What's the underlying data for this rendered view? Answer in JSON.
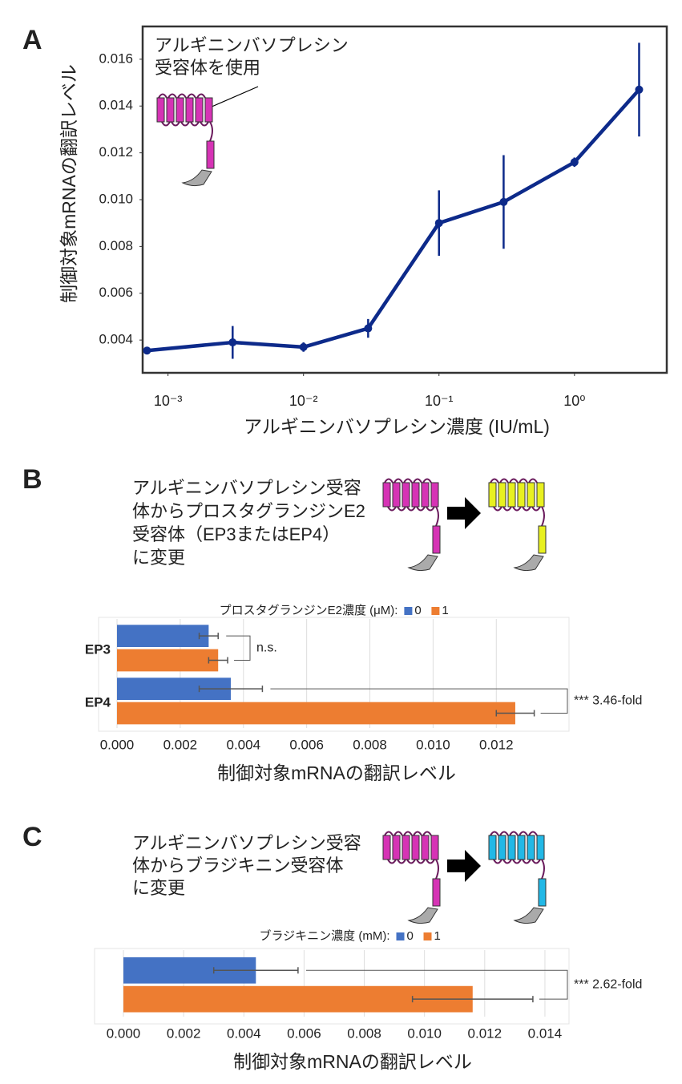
{
  "chart_data": [
    {
      "type": "line",
      "panel": "A",
      "annotation": [
        "アルギニンバソプレシン",
        "受容体を使用"
      ],
      "xlabel": "アルギニンバソプレシン濃度 (IU/mL)",
      "ylabel": "制御対象mRNAの翻訳レベル",
      "xscale": "log",
      "x": [
        0.0007,
        0.003,
        0.01,
        0.03,
        0.1,
        0.3,
        1,
        3
      ],
      "xlim": [
        0.00065,
        4.8
      ],
      "xticks": [
        {
          "value": 0.001,
          "label": "10⁻³"
        },
        {
          "value": 0.01,
          "label": "10⁻²"
        },
        {
          "value": 0.1,
          "label": "10⁻¹"
        },
        {
          "value": 1,
          "label": "10⁰"
        }
      ],
      "ylim": [
        0.0026,
        0.0174
      ],
      "yticks": [
        0.004,
        0.006,
        0.008,
        {
          "value": 0.01,
          "label": "0.010"
        },
        0.012,
        0.014,
        0.016
      ],
      "series": [
        {
          "color": "#0d2a8a",
          "values": [
            0.00355,
            0.0039,
            0.0037,
            0.0045,
            0.009,
            0.0099,
            0.0116,
            0.0147
          ],
          "errors": [
            0.0001,
            0.0007,
            0.0002,
            0.0004,
            0.0014,
            0.002,
            0.0002,
            0.002
          ]
        }
      ]
    },
    {
      "type": "barh",
      "panel": "B",
      "description": [
        "アルギニンバソプレシン受容",
        "体からプロスタグランジンE2",
        "受容体（EP3またはEP4）",
        "に変更"
      ],
      "legend_title": "プロスタグランジンE2濃度 (μM):",
      "categories": [
        "EP3",
        "EP4"
      ],
      "series": [
        {
          "name": "0",
          "color": "#4472c4",
          "values": [
            0.0029,
            0.0036
          ],
          "errors": [
            0.0003,
            0.001
          ]
        },
        {
          "name": "1",
          "color": "#ed7d31",
          "values": [
            0.0032,
            0.0126
          ],
          "errors": [
            0.0003,
            0.0006
          ]
        }
      ],
      "annotations": [
        "n.s.",
        "*** 3.46-fold"
      ],
      "xlim": [
        0,
        0.0143
      ],
      "xticks": [
        {
          "value": 0,
          "label": "0.000"
        },
        {
          "value": 0.002,
          "label": "0.002"
        },
        {
          "value": 0.004,
          "label": "0.004"
        },
        {
          "value": 0.006,
          "label": "0.006"
        },
        {
          "value": 0.008,
          "label": "0.008"
        },
        {
          "value": 0.01,
          "label": "0.010"
        },
        {
          "value": 0.012,
          "label": "0.012"
        }
      ],
      "xlabel": "制御対象mRNAの翻訳レベル",
      "grid": true
    },
    {
      "type": "barh",
      "panel": "C",
      "description": [
        "アルギニンバソプレシン受容",
        "体からブラジキニン受容体",
        "に変更"
      ],
      "legend_title": "ブラジキニン濃度 (mM):",
      "categories": [
        null
      ],
      "series": [
        {
          "name": "0",
          "color": "#4472c4",
          "values": [
            0.0044
          ],
          "errors": [
            0.0014
          ]
        },
        {
          "name": "1",
          "color": "#ed7d31",
          "values": [
            0.0116
          ],
          "errors": [
            0.002
          ]
        }
      ],
      "annotations": [
        "*** 2.62-fold"
      ],
      "xlim": [
        0,
        0.0148
      ],
      "xticks": [
        {
          "value": 0,
          "label": "0.000"
        },
        {
          "value": 0.002,
          "label": "0.002"
        },
        {
          "value": 0.004,
          "label": "0.004"
        },
        {
          "value": 0.006,
          "label": "0.006"
        },
        {
          "value": 0.008,
          "label": "0.008"
        },
        {
          "value": 0.01,
          "label": "0.010"
        },
        {
          "value": 0.012,
          "label": "0.012"
        },
        {
          "value": 0.014,
          "label": "0.014"
        }
      ],
      "xlabel": "制御対象mRNAの翻訳レベル",
      "grid": true
    }
  ]
}
